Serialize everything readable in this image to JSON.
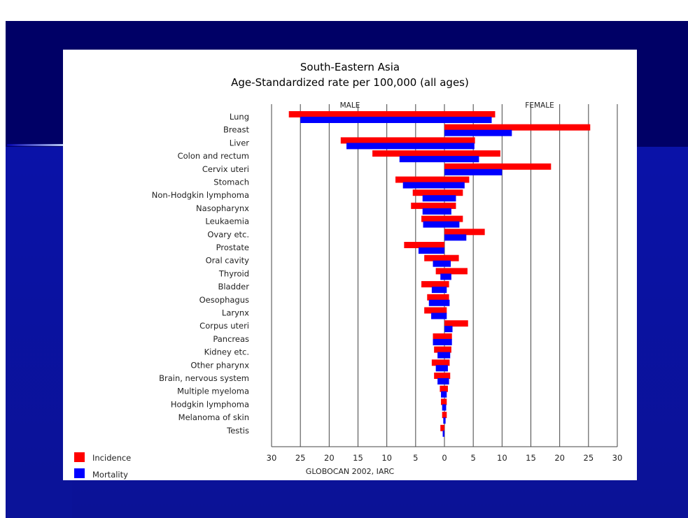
{
  "chart_data": {
    "type": "bar",
    "orientation": "horizontal-butterfly",
    "title": "South-Eastern Asia",
    "subtitle": "Age-Standardized rate per 100,000 (all ages)",
    "left_panel_label": "MALE",
    "right_panel_label": "FEMALE",
    "source": "GLOBOCAN 2002, IARC",
    "xlim": [
      -30,
      30
    ],
    "x_ticks": [
      -30,
      -25,
      -20,
      -15,
      -10,
      -5,
      0,
      5,
      10,
      15,
      20,
      25,
      30
    ],
    "x_tick_labels": [
      "30",
      "25",
      "20",
      "15",
      "10",
      "5",
      "0",
      "5",
      "10",
      "15",
      "20",
      "25",
      "30"
    ],
    "grid": true,
    "legend_position": "bottom-left",
    "categories": [
      "Lung",
      "Breast",
      "Liver",
      "Colon and rectum",
      "Cervix uteri",
      "Stomach",
      "Non-Hodgkin lymphoma",
      "Nasopharynx",
      "Leukaemia",
      "Ovary etc.",
      "Prostate",
      "Oral cavity",
      "Thyroid",
      "Bladder",
      "Oesophagus",
      "Larynx",
      "Corpus uteri",
      "Pancreas",
      "Kidney etc.",
      "Other pharynx",
      "Brain, nervous system",
      "Multiple myeloma",
      "Hodgkin lymphoma",
      "Melanoma of skin",
      "Testis"
    ],
    "series": [
      {
        "name": "Incidence",
        "color": "#ff0000",
        "male": [
          27.0,
          0,
          18.0,
          12.5,
          0,
          8.5,
          5.5,
          5.8,
          4.0,
          0,
          7.0,
          3.5,
          1.5,
          4.0,
          3.0,
          3.5,
          0,
          2.0,
          1.8,
          2.2,
          1.8,
          0.8,
          0.6,
          0.4,
          0.7
        ],
        "female": [
          8.8,
          25.3,
          5.3,
          9.7,
          18.5,
          4.3,
          3.2,
          2.0,
          3.2,
          7.0,
          0,
          2.5,
          4.0,
          0.8,
          0.8,
          0.4,
          4.1,
          1.3,
          1.2,
          0.9,
          1.0,
          0.6,
          0.4,
          0.4,
          0
        ]
      },
      {
        "name": "Mortality",
        "color": "#0000ff",
        "male": [
          25.0,
          0,
          17.0,
          7.8,
          0,
          7.2,
          3.8,
          3.8,
          3.7,
          0,
          4.5,
          2.0,
          0.7,
          2.2,
          2.7,
          2.3,
          0,
          2.0,
          1.2,
          1.5,
          1.2,
          0.6,
          0.4,
          0.2,
          0.3
        ],
        "female": [
          8.2,
          11.7,
          5.2,
          6.0,
          10.0,
          3.5,
          2.0,
          1.2,
          2.6,
          3.8,
          0,
          1.1,
          1.2,
          0.4,
          0.9,
          0.4,
          1.4,
          1.3,
          1.0,
          0.6,
          0.8,
          0.4,
          0.3,
          0.2,
          0
        ]
      }
    ]
  }
}
